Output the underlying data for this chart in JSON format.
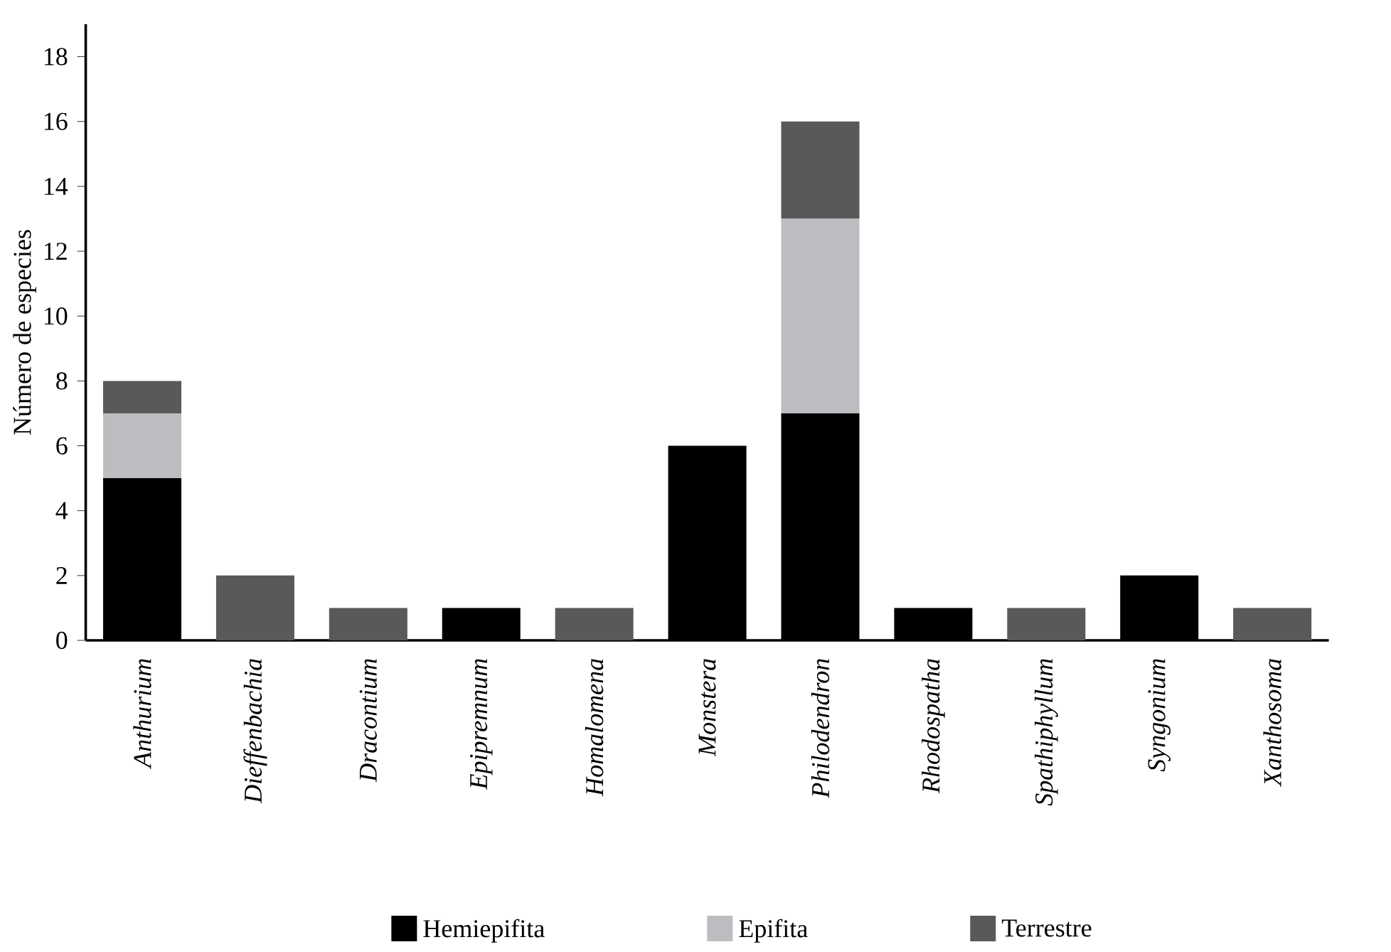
{
  "chart_data": {
    "type": "bar",
    "stacked": true,
    "ylabel": "Número de especies",
    "categories": [
      "Anthurium",
      "Dieffenbachia",
      "Dracontium",
      "Epipremnum",
      "Homalomena",
      "Monstera",
      "Philodendron",
      "Rhodospatha",
      "Spathiphyllum",
      "Syngonium",
      "Xanthosoma"
    ],
    "series": [
      {
        "name": "Hemiepifita",
        "color": "#000000",
        "values": [
          5,
          0,
          0,
          1,
          0,
          6,
          7,
          1,
          0,
          2,
          0
        ]
      },
      {
        "name": "Epifita",
        "color": "#bdbdc1",
        "values": [
          2,
          0,
          0,
          0,
          0,
          0,
          6,
          0,
          0,
          0,
          0
        ]
      },
      {
        "name": "Terrestre",
        "color": "#595959",
        "values": [
          1,
          2,
          1,
          0,
          1,
          0,
          3,
          0,
          1,
          0,
          1
        ]
      }
    ],
    "ylim": [
      0,
      19
    ],
    "yticks": [
      0,
      2,
      4,
      6,
      8,
      10,
      12,
      14,
      16,
      18
    ],
    "grid": false,
    "legend": "bottom"
  }
}
